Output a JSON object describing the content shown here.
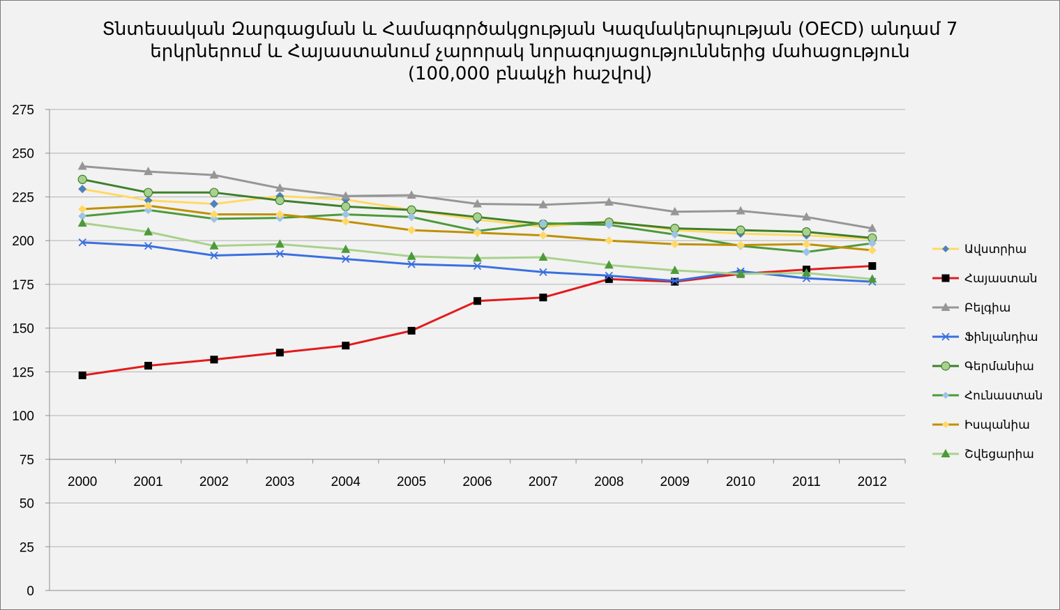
{
  "chart_data": {
    "type": "line",
    "title_lines": [
      "Տնտեսական Զարգացման և Համագործակցության Կազմակերպության (OECD) անդամ 7",
      "երկրներում և Հայաստանում չարորակ նորագոյացություններից մահացություն",
      "(100,000 բնակչի հաշվով)"
    ],
    "xlabel": "",
    "ylabel": "",
    "x": [
      "2000",
      "2001",
      "2002",
      "2003",
      "2004",
      "2005",
      "2006",
      "2007",
      "2008",
      "2009",
      "2010",
      "2011",
      "2012"
    ],
    "ylim": [
      0,
      275
    ],
    "y_ticks": [
      0,
      25,
      50,
      75,
      100,
      125,
      150,
      175,
      200,
      225,
      250,
      275
    ],
    "x_axis_crosses_at": 75,
    "grid": true,
    "legend_position": "right",
    "series": [
      {
        "name": "Ավստրիա",
        "color": "#FFD966",
        "marker": "diamond",
        "marker_color": "#4F81BD",
        "values": [
          229.5,
          223,
          221,
          225.5,
          223.5,
          217.5,
          212,
          208,
          211,
          206,
          204,
          203,
          201
        ]
      },
      {
        "name": "Հայաստան",
        "color": "#E31A1C",
        "marker": "square",
        "marker_color": "#000000",
        "values": [
          123,
          128.5,
          132,
          136,
          140,
          148.5,
          165.5,
          167.5,
          178,
          176.5,
          181,
          183.5,
          185.5
        ]
      },
      {
        "name": "Բելգիա",
        "color": "#969696",
        "marker": "triangle",
        "marker_color": "#969696",
        "values": [
          242.5,
          239.5,
          237.5,
          230,
          225.5,
          226,
          221,
          220.5,
          222,
          216.5,
          217,
          213.5,
          207
        ]
      },
      {
        "name": "Ֆինլանդիա",
        "color": "#3A6FE0",
        "marker": "cross",
        "marker_color": "#3A6FE0",
        "values": [
          199,
          197,
          191.5,
          192.5,
          189.5,
          186.5,
          185.5,
          182,
          180,
          177,
          182.5,
          178.5,
          176.5
        ]
      },
      {
        "name": "Գերմանիա",
        "color": "#3E7F2A",
        "marker": "circle",
        "marker_color": "#A9D18E",
        "values": [
          235,
          227.5,
          227.5,
          223,
          219.5,
          217.5,
          213.5,
          209.5,
          210.5,
          207,
          206,
          205,
          201.5
        ]
      },
      {
        "name": "Հունաստան",
        "color": "#4C9A3A",
        "marker": "diamond",
        "marker_color": "#9DC3E6",
        "values": [
          214,
          217.5,
          212.5,
          213,
          215,
          213.5,
          205.5,
          210,
          209,
          203.5,
          197,
          193.5,
          198.5
        ]
      },
      {
        "name": "Իսպանիա",
        "color": "#BF9000",
        "marker": "diamond",
        "marker_color": "#FFD966",
        "values": [
          218,
          220,
          215,
          215,
          211,
          206,
          204.5,
          203,
          200,
          198,
          197.5,
          198,
          194.5
        ]
      },
      {
        "name": "Շվեցարիա",
        "color": "#A9D18E",
        "marker": "triangle",
        "marker_color": "#4C9A3A",
        "values": [
          210,
          205,
          197,
          198,
          195,
          191,
          190,
          190.5,
          186,
          183,
          181,
          181.5,
          178
        ]
      }
    ]
  }
}
